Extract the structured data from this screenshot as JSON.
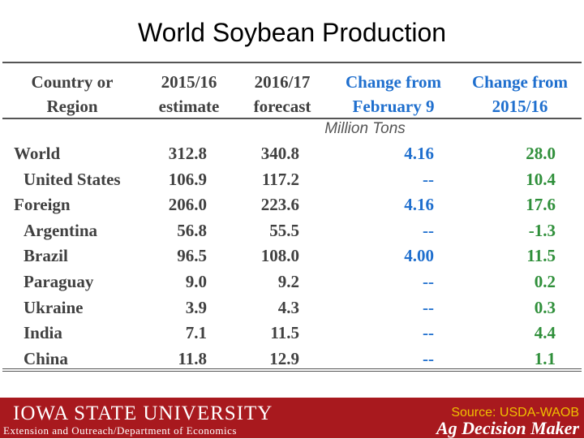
{
  "title": "World Soybean Production",
  "headers": {
    "col1": [
      "Country or",
      "Region"
    ],
    "col2": [
      "2015/16",
      "estimate"
    ],
    "col3": [
      "2016/17",
      "forecast"
    ],
    "col4": [
      "Change from",
      "February 9"
    ],
    "col5": [
      "Change from",
      "2015/16"
    ]
  },
  "units": "Million Tons",
  "rows": [
    {
      "name": "World",
      "est": "312.8",
      "fc": "340.8",
      "chg_feb": "4.16",
      "chg_yr": "28.0"
    },
    {
      "name": "United States",
      "est": "106.9",
      "fc": "117.2",
      "chg_feb": "--",
      "chg_yr": "10.4"
    },
    {
      "name": "Foreign",
      "est": "206.0",
      "fc": "223.6",
      "chg_feb": "4.16",
      "chg_yr": "17.6"
    },
    {
      "name": "Argentina",
      "est": "56.8",
      "fc": "55.5",
      "chg_feb": "--",
      "chg_yr": "-1.3"
    },
    {
      "name": "Brazil",
      "est": "96.5",
      "fc": "108.0",
      "chg_feb": "4.00",
      "chg_yr": "11.5"
    },
    {
      "name": "Paraguay",
      "est": "9.0",
      "fc": "9.2",
      "chg_feb": "--",
      "chg_yr": "0.2"
    },
    {
      "name": "Ukraine",
      "est": "3.9",
      "fc": "4.3",
      "chg_feb": "--",
      "chg_yr": "0.3"
    },
    {
      "name": "India",
      "est": "7.1",
      "fc": "11.5",
      "chg_feb": "--",
      "chg_yr": "4.4"
    },
    {
      "name": "China",
      "est": "11.8",
      "fc": "12.9",
      "chg_feb": "--",
      "chg_yr": "1.1"
    }
  ],
  "footer": {
    "university": "IOWA STATE UNIVERSITY",
    "department": "Extension and Outreach/Department of Economics",
    "source": "Source: USDA-WAOB",
    "brand": "Ag Decision Maker"
  },
  "colors": {
    "accent_blue": "#1f6fce",
    "accent_green": "#2f8f3a",
    "footer_red": "#a8191e",
    "source_gold": "#f0c000"
  }
}
